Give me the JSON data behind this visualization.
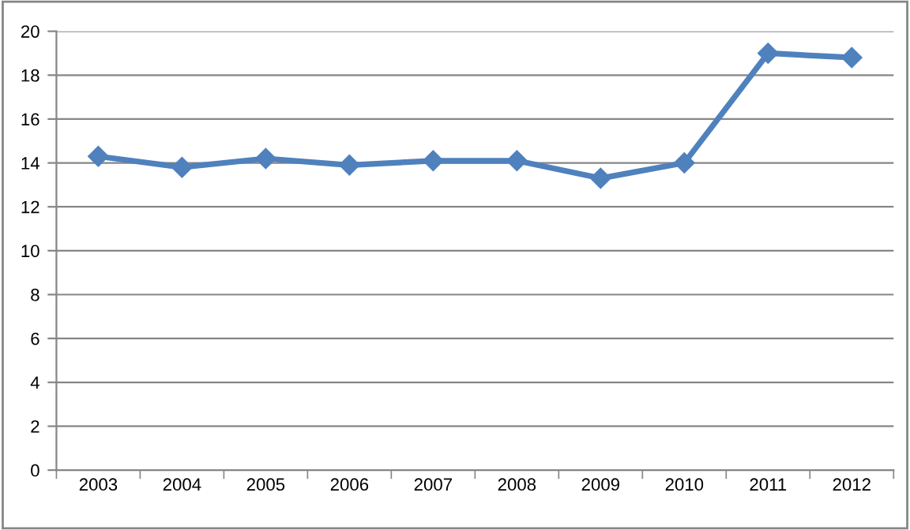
{
  "chart_data": {
    "type": "line",
    "categories": [
      "2003",
      "2004",
      "2005",
      "2006",
      "2007",
      "2008",
      "2009",
      "2010",
      "2011",
      "2012"
    ],
    "series": [
      {
        "color": "#4f81bd",
        "values": [
          14.3,
          13.8,
          14.2,
          13.9,
          14.1,
          14.1,
          13.3,
          14.0,
          19.0,
          18.8
        ]
      }
    ],
    "ylim": [
      0,
      20
    ],
    "yticks": [
      0,
      2,
      4,
      6,
      8,
      10,
      12,
      14,
      16,
      18,
      20
    ],
    "grid": "y",
    "marker": "diamond",
    "line_style": "solid",
    "legend": false
  }
}
